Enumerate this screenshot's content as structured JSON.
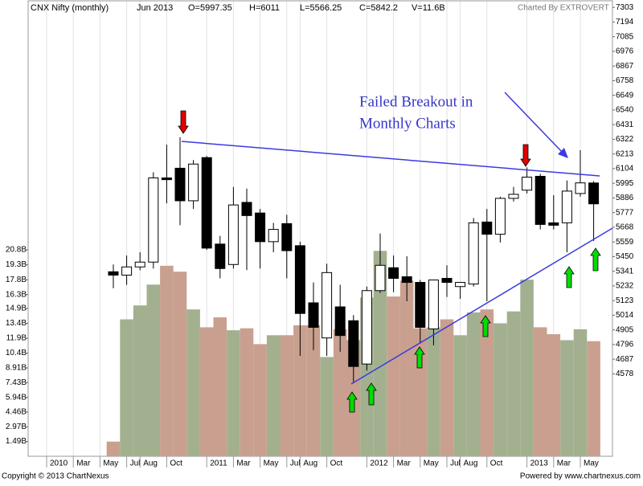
{
  "chart_data": {
    "type": "candlestick",
    "header": {
      "title": "CNX Nifty (monthly)",
      "period": "Jun 2013",
      "open": "O=5997.35",
      "high": "H=6011",
      "low": "L=5566.25",
      "close": "C=5842.2",
      "volume": "V=11.6B",
      "credit": "Charted By EXTROVERT"
    },
    "footer": {
      "left": "Copyright © 2013 ChartNexus",
      "right": "Powered by www.chartnexus.com"
    },
    "annotations": [
      "Failed Breakout in",
      "Monthly Charts"
    ],
    "categories": [
      "2010",
      null,
      "Mar",
      null,
      "May",
      null,
      "Jul",
      "Aug",
      null,
      "Oct",
      null,
      null,
      "2011",
      null,
      "Mar",
      null,
      "May",
      null,
      "Jul",
      "Aug",
      null,
      "Oct",
      null,
      null,
      "2012",
      null,
      "Mar",
      null,
      "May",
      null,
      "Jul",
      "Aug",
      null,
      "Oct",
      null,
      null,
      "2013",
      null,
      "Mar",
      null,
      "May",
      null
    ],
    "open": [
      null,
      null,
      null,
      null,
      null,
      5337,
      5312,
      5373,
      5409,
      6035,
      6107,
      5865,
      6186,
      5543,
      5391,
      5853,
      5774,
      5561,
      5695,
      5531,
      5106,
      4845,
      5076,
      4973,
      4651,
      5197,
      5367,
      5300,
      5258,
      4912,
      5288,
      5227,
      5246,
      5707,
      5616,
      5883,
      5944,
      6047,
      5701,
      5701,
      5919,
      5997.35
    ],
    "high": [
      null,
      null,
      null,
      null,
      null,
      5391,
      5458,
      5482,
      6077,
      6283,
      6338,
      6168,
      6198,
      5604,
      5968,
      5956,
      5804,
      5701,
      5761,
      5561,
      5258,
      5397,
      5240,
      5015,
      5227,
      5622,
      5458,
      5452,
      5276,
      5276,
      5385,
      5258,
      5737,
      5804,
      5895,
      5968,
      6113,
      6065,
      5907,
      6016,
      6241,
      6011
    ],
    "low": [
      null,
      null,
      null,
      null,
      null,
      5215,
      5240,
      5349,
      5361,
      5846,
      5683,
      5804,
      5500,
      5288,
      5361,
      5349,
      5361,
      5482,
      5288,
      4712,
      4754,
      4712,
      4742,
      4511,
      4602,
      5179,
      5185,
      5118,
      4803,
      4790,
      5149,
      5136,
      5227,
      5118,
      5555,
      5859,
      5919,
      5652,
      5652,
      5482,
      5895,
      5566.25
    ],
    "close": [
      null,
      null,
      null,
      null,
      null,
      5312,
      5373,
      5409,
      6035,
      6022,
      5865,
      6138,
      5513,
      5361,
      5834,
      5755,
      5561,
      5652,
      5494,
      5027,
      4924,
      5331,
      4863,
      4633,
      5197,
      5385,
      5288,
      5258,
      4924,
      5276,
      5258,
      5258,
      5701,
      5616,
      5883,
      5913,
      6041,
      5689,
      5683,
      5937,
      5998,
      5842.2
    ],
    "volume": [
      null,
      null,
      null,
      null,
      null,
      1.48,
      13.8,
      15.2,
      17.3,
      19.2,
      18.6,
      14.8,
      13.0,
      14.0,
      12.7,
      12.9,
      11.3,
      12.2,
      12.2,
      13.2,
      13.2,
      10.0,
      12.8,
      11.7,
      16.0,
      20.7,
      16.1,
      17.7,
      12.9,
      13.0,
      13.8,
      12.2,
      14.5,
      14.8,
      13.4,
      14.6,
      17.8,
      13.0,
      12.3,
      11.7,
      12.8,
      11.6
    ],
    "up_color": "#ffffff",
    "down_color": "#000000",
    "volume_up_color": "#a3b090",
    "volume_down_color": "#c9a08f",
    "trendline_color": "#3a3ae0",
    "ylim": [
      3965,
      7352
    ],
    "yticks": [
      7303,
      7194,
      7085,
      6976,
      6867,
      6758,
      6649,
      6540,
      6431,
      6322,
      6213,
      6104,
      5995,
      5886,
      5777,
      5668,
      5559,
      5450,
      5341,
      5232,
      5123,
      5014,
      4905,
      4796,
      4687,
      4578
    ],
    "y2lim": [
      0,
      45.9
    ],
    "y2ticks": [
      {
        "value": 1.49,
        "label": "1.49B"
      },
      {
        "value": 2.97,
        "label": "2.97B"
      },
      {
        "value": 4.46,
        "label": "4.46B"
      },
      {
        "value": 5.94,
        "label": "5.94B"
      },
      {
        "value": 7.43,
        "label": "7.43B"
      },
      {
        "value": 8.91,
        "label": "8.91B"
      },
      {
        "value": 10.4,
        "label": "10.4B"
      },
      {
        "value": 11.9,
        "label": "11.9B"
      },
      {
        "value": 13.4,
        "label": "13.4B"
      },
      {
        "value": 14.9,
        "label": "14.9B"
      },
      {
        "value": 16.3,
        "label": "16.3B"
      },
      {
        "value": 17.8,
        "label": "17.8B"
      },
      {
        "value": 19.3,
        "label": "19.3B"
      },
      {
        "value": 20.8,
        "label": "20.8B"
      }
    ]
  }
}
